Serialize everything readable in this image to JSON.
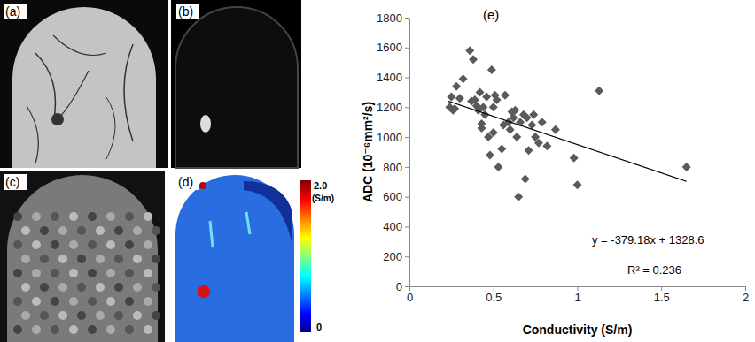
{
  "chart_data": {
    "type": "scatter",
    "title": "(e)",
    "x_label": "Conductivity  (S/m)",
    "y_label": "ADC (10⁻⁶mm²/s)",
    "xlim": [
      0,
      2
    ],
    "ylim": [
      0,
      1800
    ],
    "xticks": [
      0,
      0.5,
      1,
      1.5,
      2
    ],
    "yticks": [
      0,
      200,
      400,
      600,
      800,
      1000,
      1200,
      1400,
      1600,
      1800
    ],
    "grid": false,
    "annotations": [
      "y = -379.18x + 1328.6",
      "R² = 0.236"
    ],
    "series": [
      {
        "type": "scatter",
        "marker": "diamond",
        "color": "#5a5a5a",
        "x": [
          0.24,
          0.25,
          0.26,
          0.27,
          0.28,
          0.3,
          0.32,
          0.36,
          0.37,
          0.38,
          0.39,
          0.4,
          0.41,
          0.42,
          0.43,
          0.43,
          0.44,
          0.45,
          0.46,
          0.47,
          0.48,
          0.49,
          0.5,
          0.5,
          0.51,
          0.52,
          0.53,
          0.55,
          0.56,
          0.57,
          0.59,
          0.6,
          0.61,
          0.62,
          0.63,
          0.64,
          0.65,
          0.66,
          0.68,
          0.69,
          0.7,
          0.71,
          0.73,
          0.74,
          0.75,
          0.77,
          0.79,
          0.82,
          0.87,
          0.98,
          1.0,
          1.13,
          1.65
        ],
        "values": [
          1200,
          1270,
          1180,
          1190,
          1340,
          1260,
          1390,
          1580,
          1240,
          1520,
          1250,
          1210,
          1180,
          1300,
          1090,
          1060,
          1200,
          1150,
          1270,
          1000,
          880,
          1450,
          1030,
          1200,
          1280,
          1250,
          800,
          920,
          1080,
          1280,
          1100,
          1050,
          1170,
          1130,
          1180,
          1000,
          600,
          1100,
          1150,
          720,
          1130,
          910,
          1080,
          1150,
          1000,
          960,
          1100,
          940,
          1050,
          860,
          680,
          1310,
          800
        ]
      },
      {
        "type": "line",
        "line_style": "solid",
        "color": "#000000",
        "x": [
          0.23,
          1.65
        ],
        "values": [
          1241.4,
          703.0
        ]
      }
    ]
  },
  "panels": {
    "labels": [
      "(a)",
      "(b)",
      "(c)",
      "(d)"
    ],
    "colorbar": {
      "range": [
        0,
        2
      ],
      "ticks": [
        0,
        {
          "value": 2,
          "label": "2.0"
        }
      ],
      "unit": "(S/m)"
    }
  }
}
